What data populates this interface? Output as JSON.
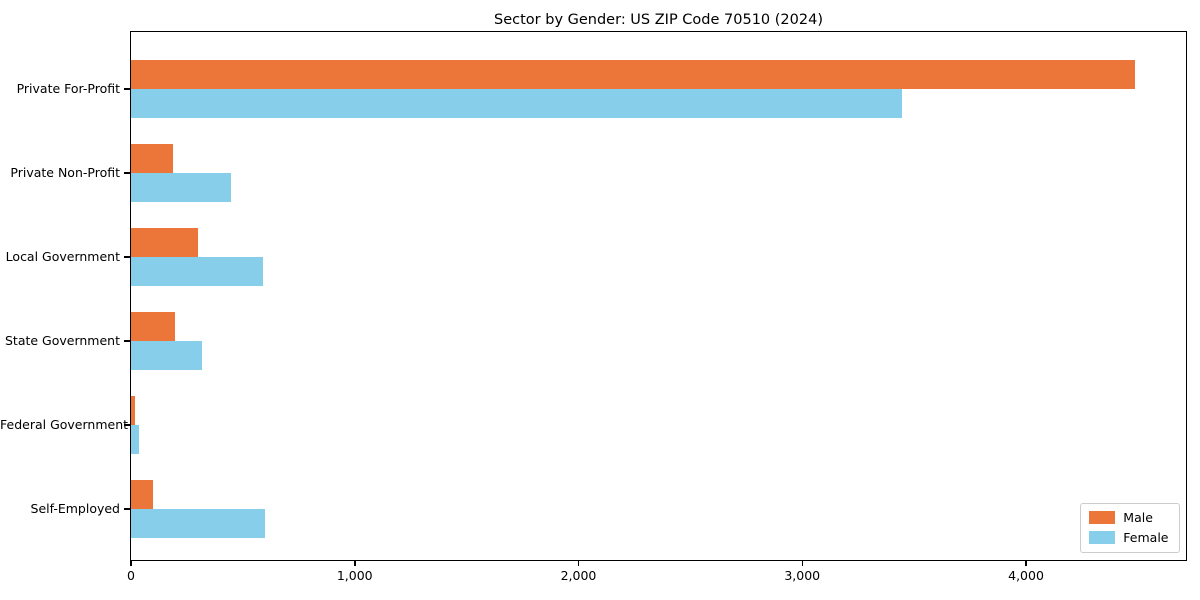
{
  "chart_data": {
    "type": "bar",
    "orientation": "horizontal",
    "title": "Sector by Gender: US ZIP Code 70510 (2024)",
    "categories": [
      "Private For-Profit",
      "Private Non-Profit",
      "Local Government",
      "State Government",
      "Federal Government",
      "Self-Employed"
    ],
    "series": [
      {
        "name": "Male",
        "color": "#ec7639",
        "values": [
          4490,
          190,
          300,
          200,
          18,
          100
        ]
      },
      {
        "name": "Female",
        "color": "#87ceeb",
        "values": [
          3450,
          450,
          590,
          320,
          40,
          600
        ]
      }
    ],
    "xlabel": "",
    "ylabel": "",
    "xlim": [
      0,
      4715
    ],
    "xticks": [
      0,
      1000,
      2000,
      3000,
      4000
    ],
    "xtick_labels": [
      "0",
      "1,000",
      "2,000",
      "3,000",
      "4,000"
    ],
    "grid": false,
    "legend": {
      "position": "lower right",
      "entries": [
        "Male",
        "Female"
      ]
    }
  }
}
